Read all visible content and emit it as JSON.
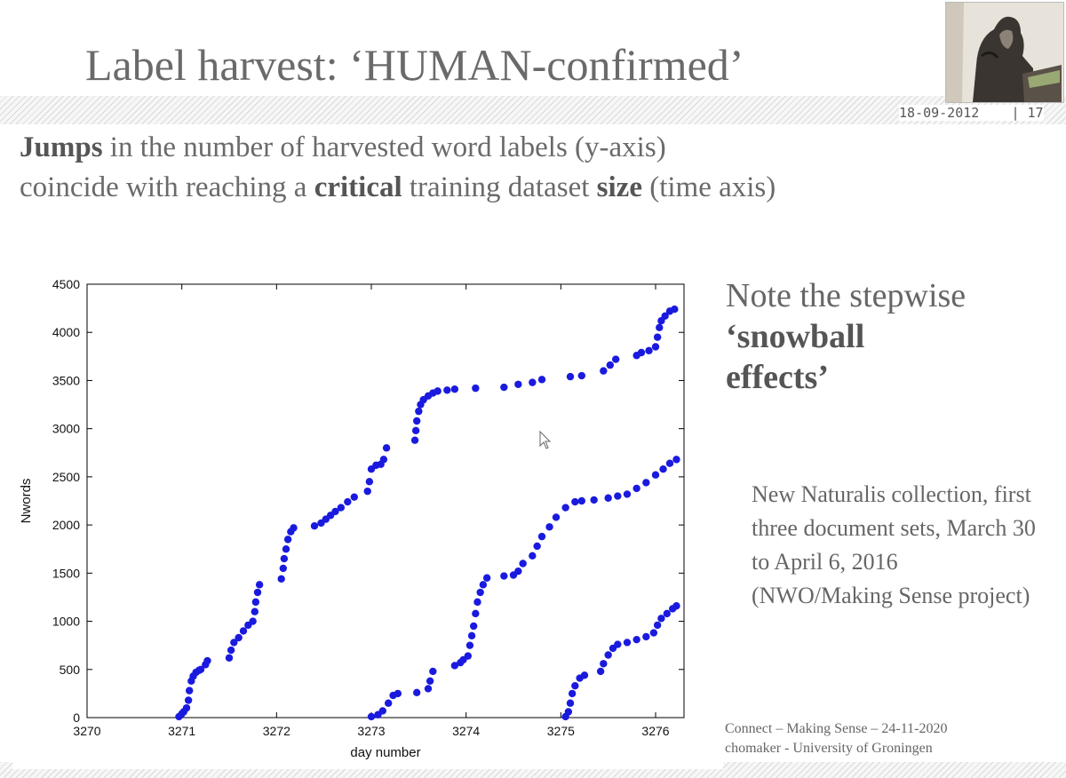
{
  "slide": {
    "title": "Label harvest: ‘HUMAN-confirmed’",
    "date": "18-09-2012",
    "page": "| 17",
    "line1": {
      "bold1": "Jumps",
      "text1": " in the number of harvested word labels (y-axis)"
    },
    "line2": {
      "text1": "coincide with reaching a ",
      "bold1": "critical",
      "text2": " training  dataset ",
      "bold2": "size",
      "text3": " (time axis)"
    },
    "note": {
      "line1": "Note the stepwise",
      "line2": "‘snowball",
      "line3": "effects’"
    },
    "desc": "New Naturalis collection, first three document sets, March 30 to April 6, 2016  (NWO/Making Sense project)",
    "footer": {
      "line1": "Connect – Making Sense – 24-11-2020",
      "line2": "chomaker - University of Groningen"
    }
  },
  "chart_data": {
    "type": "scatter",
    "xlabel": "day number",
    "ylabel": "Nwords",
    "xlim": [
      3270,
      3276.3
    ],
    "ylim": [
      0,
      4500
    ],
    "xticks": [
      3270,
      3271,
      3272,
      3273,
      3274,
      3275,
      3276
    ],
    "yticks": [
      0,
      500,
      1000,
      1500,
      2000,
      2500,
      3000,
      3500,
      4000,
      4500
    ],
    "color": "#1a1adf",
    "series": [
      {
        "points": [
          [
            3270.97,
            10
          ],
          [
            3271.0,
            40
          ],
          [
            3271.02,
            60
          ],
          [
            3271.05,
            100
          ],
          [
            3271.07,
            180
          ],
          [
            3271.08,
            280
          ],
          [
            3271.1,
            380
          ],
          [
            3271.12,
            430
          ],
          [
            3271.15,
            470
          ],
          [
            3271.18,
            490
          ],
          [
            3271.2,
            500
          ],
          [
            3271.25,
            550
          ],
          [
            3271.27,
            590
          ],
          [
            3271.5,
            620
          ],
          [
            3271.52,
            700
          ],
          [
            3271.55,
            780
          ],
          [
            3271.6,
            830
          ],
          [
            3271.65,
            900
          ],
          [
            3271.7,
            960
          ],
          [
            3271.75,
            1000
          ],
          [
            3271.77,
            1100
          ],
          [
            3271.78,
            1200
          ],
          [
            3271.8,
            1300
          ],
          [
            3271.82,
            1380
          ],
          [
            3272.05,
            1440
          ],
          [
            3272.07,
            1550
          ],
          [
            3272.08,
            1650
          ],
          [
            3272.1,
            1750
          ],
          [
            3272.12,
            1850
          ],
          [
            3272.15,
            1930
          ],
          [
            3272.18,
            1970
          ],
          [
            3272.4,
            1990
          ],
          [
            3272.47,
            2020
          ],
          [
            3272.52,
            2060
          ],
          [
            3272.57,
            2100
          ],
          [
            3272.62,
            2140
          ],
          [
            3272.68,
            2180
          ],
          [
            3272.75,
            2240
          ],
          [
            3272.82,
            2290
          ],
          [
            3272.96,
            2350
          ],
          [
            3272.98,
            2450
          ],
          [
            3273.0,
            2580
          ],
          [
            3273.05,
            2620
          ],
          [
            3273.1,
            2630
          ],
          [
            3273.13,
            2680
          ],
          [
            3273.16,
            2800
          ],
          [
            3273.46,
            2880
          ],
          [
            3273.47,
            2980
          ],
          [
            3273.48,
            3080
          ],
          [
            3273.5,
            3180
          ],
          [
            3273.52,
            3250
          ],
          [
            3273.55,
            3300
          ],
          [
            3273.6,
            3340
          ],
          [
            3273.65,
            3370
          ],
          [
            3273.7,
            3390
          ],
          [
            3273.8,
            3400
          ],
          [
            3273.88,
            3410
          ],
          [
            3274.1,
            3420
          ],
          [
            3274.4,
            3430
          ],
          [
            3274.55,
            3460
          ],
          [
            3274.7,
            3480
          ],
          [
            3274.8,
            3510
          ],
          [
            3275.1,
            3540
          ],
          [
            3275.22,
            3550
          ],
          [
            3275.45,
            3600
          ],
          [
            3275.52,
            3660
          ],
          [
            3275.58,
            3720
          ],
          [
            3275.8,
            3760
          ],
          [
            3275.85,
            3790
          ],
          [
            3275.93,
            3810
          ],
          [
            3276.0,
            3850
          ],
          [
            3276.02,
            3950
          ],
          [
            3276.04,
            4050
          ],
          [
            3276.06,
            4120
          ],
          [
            3276.1,
            4170
          ],
          [
            3276.15,
            4220
          ],
          [
            3276.2,
            4240
          ]
        ]
      },
      {
        "points": [
          [
            3273.0,
            10
          ],
          [
            3273.07,
            30
          ],
          [
            3273.12,
            70
          ],
          [
            3273.18,
            150
          ],
          [
            3273.23,
            230
          ],
          [
            3273.28,
            250
          ],
          [
            3273.48,
            260
          ],
          [
            3273.6,
            300
          ],
          [
            3273.62,
            380
          ],
          [
            3273.65,
            480
          ],
          [
            3273.88,
            540
          ],
          [
            3273.94,
            570
          ],
          [
            3273.97,
            600
          ],
          [
            3274.02,
            640
          ],
          [
            3274.04,
            750
          ],
          [
            3274.06,
            850
          ],
          [
            3274.08,
            950
          ],
          [
            3274.1,
            1080
          ],
          [
            3274.12,
            1200
          ],
          [
            3274.15,
            1300
          ],
          [
            3274.18,
            1380
          ],
          [
            3274.22,
            1450
          ],
          [
            3274.4,
            1470
          ],
          [
            3274.5,
            1480
          ],
          [
            3274.55,
            1520
          ],
          [
            3274.6,
            1600
          ],
          [
            3274.7,
            1680
          ],
          [
            3274.75,
            1780
          ],
          [
            3274.8,
            1880
          ],
          [
            3274.88,
            1980
          ],
          [
            3274.95,
            2080
          ],
          [
            3275.05,
            2180
          ],
          [
            3275.15,
            2240
          ],
          [
            3275.22,
            2250
          ],
          [
            3275.35,
            2260
          ],
          [
            3275.5,
            2280
          ],
          [
            3275.6,
            2300
          ],
          [
            3275.7,
            2320
          ],
          [
            3275.8,
            2380
          ],
          [
            3275.9,
            2440
          ],
          [
            3276.0,
            2520
          ],
          [
            3276.08,
            2580
          ],
          [
            3276.15,
            2640
          ],
          [
            3276.22,
            2680
          ]
        ]
      },
      {
        "points": [
          [
            3275.05,
            10
          ],
          [
            3275.08,
            60
          ],
          [
            3275.1,
            150
          ],
          [
            3275.12,
            250
          ],
          [
            3275.15,
            330
          ],
          [
            3275.2,
            410
          ],
          [
            3275.25,
            440
          ],
          [
            3275.42,
            480
          ],
          [
            3275.45,
            560
          ],
          [
            3275.5,
            650
          ],
          [
            3275.55,
            720
          ],
          [
            3275.6,
            760
          ],
          [
            3275.7,
            780
          ],
          [
            3275.8,
            810
          ],
          [
            3275.9,
            840
          ],
          [
            3275.98,
            880
          ],
          [
            3276.02,
            960
          ],
          [
            3276.06,
            1030
          ],
          [
            3276.12,
            1080
          ],
          [
            3276.18,
            1130
          ],
          [
            3276.22,
            1160
          ]
        ]
      }
    ]
  }
}
